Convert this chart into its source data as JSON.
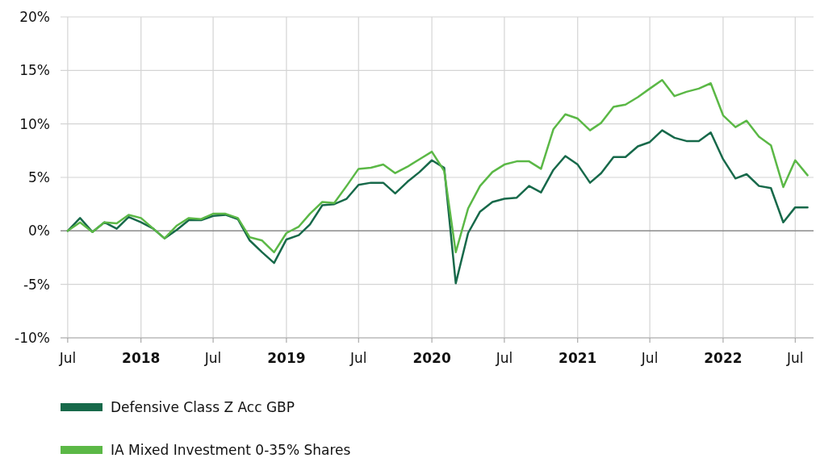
{
  "chart_data": {
    "type": "line",
    "x": [
      "2017-07",
      "2017-08",
      "2017-09",
      "2017-10",
      "2017-11",
      "2017-12",
      "2018-01",
      "2018-02",
      "2018-03",
      "2018-04",
      "2018-05",
      "2018-06",
      "2018-07",
      "2018-08",
      "2018-09",
      "2018-10",
      "2018-11",
      "2018-12",
      "2019-01",
      "2019-02",
      "2019-03",
      "2019-04",
      "2019-05",
      "2019-06",
      "2019-07",
      "2019-08",
      "2019-09",
      "2019-10",
      "2019-11",
      "2019-12",
      "2020-01",
      "2020-02",
      "2020-03",
      "2020-04",
      "2020-05",
      "2020-06",
      "2020-07",
      "2020-08",
      "2020-09",
      "2020-10",
      "2020-11",
      "2020-12",
      "2021-01",
      "2021-02",
      "2021-03",
      "2021-04",
      "2021-05",
      "2021-06",
      "2021-07",
      "2021-08",
      "2021-09",
      "2021-10",
      "2021-11",
      "2021-12",
      "2022-01",
      "2022-02",
      "2022-03",
      "2022-04",
      "2022-05",
      "2022-06",
      "2022-07",
      "2022-08"
    ],
    "series": [
      {
        "name": "Defensive Class Z Acc GBP",
        "color": "#17694a",
        "values": [
          0,
          1.2,
          -0.1,
          0.8,
          0.2,
          1.3,
          0.8,
          0.2,
          -0.7,
          0.1,
          1.0,
          1.0,
          1.4,
          1.5,
          1.1,
          -0.9,
          -2.0,
          -3.0,
          -0.8,
          -0.4,
          0.6,
          2.4,
          2.5,
          3.0,
          4.3,
          4.5,
          4.5,
          3.5,
          4.6,
          5.5,
          6.6,
          5.9,
          -4.9,
          -0.2,
          1.8,
          2.7,
          3.0,
          3.1,
          4.2,
          3.6,
          5.7,
          7.0,
          6.2,
          4.5,
          5.4,
          6.9,
          6.9,
          7.9,
          8.3,
          9.4,
          8.7,
          8.4,
          8.4,
          9.2,
          6.7,
          4.9,
          5.3,
          4.2,
          4.0,
          0.8,
          2.2,
          2.2
        ]
      },
      {
        "name": "IA Mixed Investment 0-35% Shares",
        "color": "#5bb846",
        "values": [
          0,
          0.8,
          -0.1,
          0.8,
          0.7,
          1.5,
          1.2,
          0.2,
          -0.7,
          0.5,
          1.2,
          1.1,
          1.6,
          1.6,
          1.2,
          -0.6,
          -0.9,
          -2.0,
          -0.2,
          0.4,
          1.6,
          2.7,
          2.6,
          4.2,
          5.8,
          5.9,
          6.2,
          5.4,
          6.0,
          6.7,
          7.4,
          5.6,
          -2.0,
          2.1,
          4.2,
          5.5,
          6.2,
          6.5,
          6.5,
          5.8,
          9.5,
          10.9,
          10.5,
          9.4,
          10.1,
          11.6,
          11.8,
          12.5,
          13.3,
          14.1,
          12.6,
          13.0,
          13.3,
          13.8,
          10.8,
          9.7,
          10.3,
          8.8,
          8.0,
          4.1,
          6.6,
          5.2
        ]
      }
    ],
    "xlim": [
      "2017-06-13",
      "2022-08-16"
    ],
    "xticks": [
      {
        "value": "2017-07",
        "label": "Jul"
      },
      {
        "value": "2018-01",
        "label": "2018"
      },
      {
        "value": "2018-07",
        "label": "Jul"
      },
      {
        "value": "2019-01",
        "label": "2019"
      },
      {
        "value": "2019-07",
        "label": "Jul"
      },
      {
        "value": "2020-01",
        "label": "2020"
      },
      {
        "value": "2020-07",
        "label": "Jul"
      },
      {
        "value": "2021-01",
        "label": "2021"
      },
      {
        "value": "2021-07",
        "label": "Jul"
      },
      {
        "value": "2022-01",
        "label": "2022"
      },
      {
        "value": "2022-07",
        "label": "Jul"
      }
    ],
    "ylim": [
      -10,
      20
    ],
    "yticks": [
      {
        "value": -10,
        "label": "-10%"
      },
      {
        "value": -5,
        "label": "-5%"
      },
      {
        "value": 0,
        "label": "0%"
      },
      {
        "value": 5,
        "label": "5%"
      },
      {
        "value": 10,
        "label": "10%"
      },
      {
        "value": 15,
        "label": "15%"
      },
      {
        "value": 20,
        "label": "20%"
      }
    ],
    "grid": true,
    "legend": "bottom"
  }
}
